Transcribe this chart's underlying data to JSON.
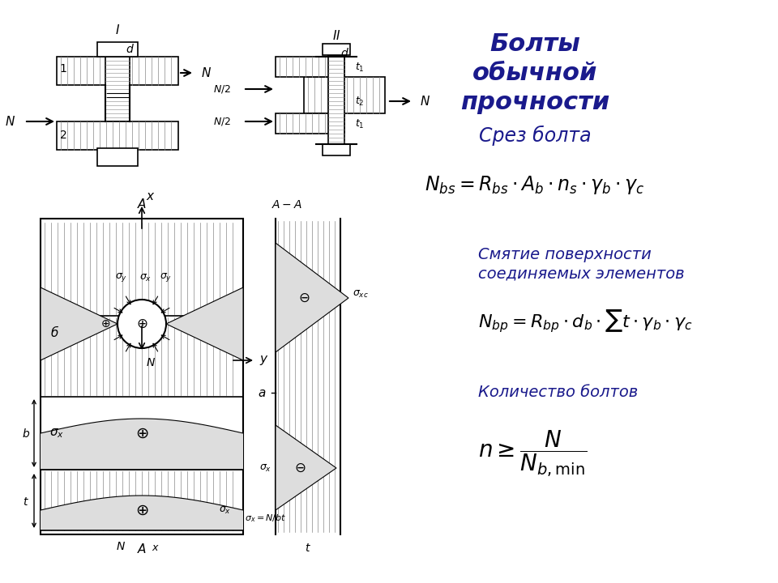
{
  "bg_color": "#ffffff",
  "title_text": "Болты\nобычной\nпрочности",
  "title_color": "#1a1a8c",
  "subtitle_text": "Срез болта",
  "subtitle_color": "#1a1a8c",
  "formula1": "$N_{bs} = R_{bs} \\cdot A_b \\cdot n_s \\cdot \\gamma_b \\cdot \\gamma_c$",
  "section_title2": "Смятие поверхности\nсоединяемых элементов",
  "formula2": "$N_{bp} = R_{bp} \\cdot d_b \\cdot \\sum t \\cdot \\gamma_b \\cdot \\gamma_c$",
  "section_title3": "Количество болтов",
  "formula3": "$n \\geq N \\Big/ N_{b,\\mathrm{min}}$",
  "dark_blue": "#1a1a8c",
  "black": "#000000",
  "gray_fill": "#c8c8c8",
  "hatch_color": "#555555"
}
